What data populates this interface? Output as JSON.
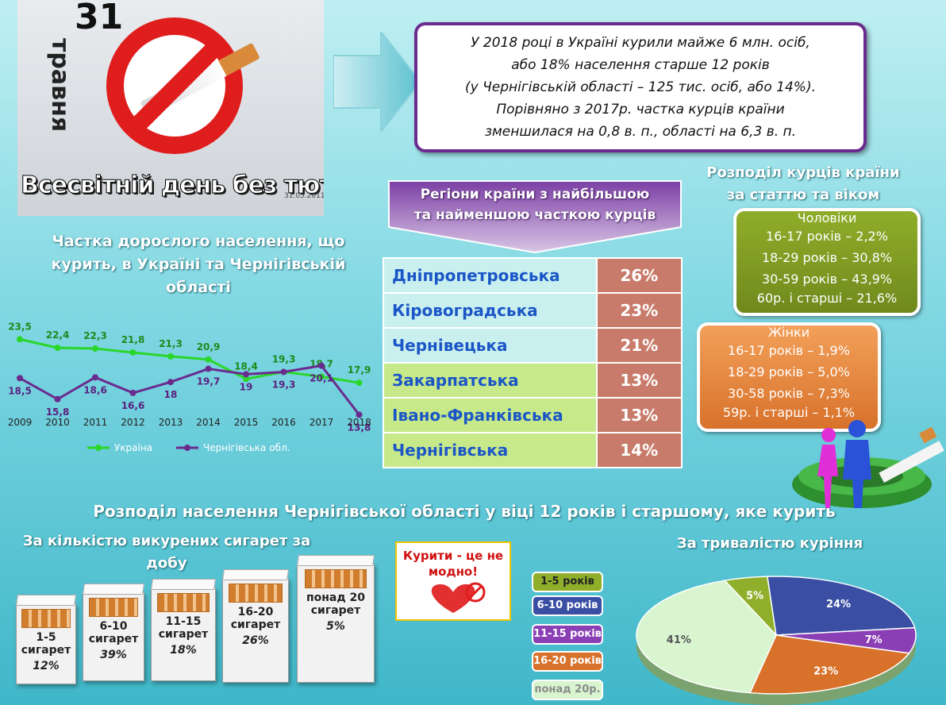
{
  "poster": {
    "day": "31",
    "month": "травня",
    "caption": "Всесвітній день без тютюну",
    "stamp": "31.05.2011"
  },
  "facts": {
    "line1": "У 2018 році в Україні курили майже 6 млн. осіб,",
    "line2": "або 18% населення старше 12 років",
    "line3": "(у Чернігівській області – 125 тис. осіб, або 14%).",
    "line4": "Порівняно з 2017р. частка курців країни",
    "line5": "зменшилася на 0,8 в. п., області на 6,3 в. п."
  },
  "lineTitle": {
    "l1": "Частка дорослого населення, що",
    "l2": "курить, в Україні та Чернігівській",
    "l3": "області"
  },
  "chart_data": {
    "type": "line",
    "categories": [
      "2009",
      "2010",
      "2011",
      "2012",
      "2013",
      "2014",
      "2015",
      "2016",
      "2017",
      "2018"
    ],
    "series": [
      {
        "name": "Україна",
        "color": "#2ad62a",
        "values": [
          23.5,
          22.4,
          22.3,
          21.8,
          21.3,
          20.9,
          18.4,
          19.3,
          18.7,
          17.9
        ],
        "labels": [
          "23,5",
          "22,4",
          "22,3",
          "21,8",
          "21,3",
          "20,9",
          "18,4",
          "19,3",
          "18,7",
          "17,9"
        ]
      },
      {
        "name": "Чернігівська обл.",
        "color": "#6a2b8f",
        "values": [
          18.5,
          15.8,
          18.6,
          16.6,
          18,
          19.7,
          19,
          19.3,
          20.1,
          13.8
        ],
        "labels": [
          "18,5",
          "15,8",
          "18,6",
          "16,6",
          "18",
          "19,7",
          "19",
          "19,3",
          "20,1",
          "13,8"
        ]
      }
    ],
    "legend": "bottom"
  },
  "regions": {
    "title1": "Регіони країни з найбільшою",
    "title2": "та найменшою часткою курців",
    "rows": [
      {
        "name": "Дніпропетровська",
        "value": "26%"
      },
      {
        "name": "Кіровоградська",
        "value": "23%"
      },
      {
        "name": "Чернівецька",
        "value": "21%"
      },
      {
        "name": "Закарпатська",
        "value": "13%"
      },
      {
        "name": "Івано-Франківська",
        "value": "13%"
      },
      {
        "name": "Чернігівська",
        "value": "14%"
      }
    ]
  },
  "gender": {
    "title1": "Розподіл курців країни",
    "title2": "за статтю та віком",
    "men": {
      "label": "Чоловіки",
      "rows": [
        "16-17 років – 2,2%",
        "18-29 років – 30,8%",
        "30-59 років – 43,9%",
        "60р. і старші – 21,6%"
      ]
    },
    "women": {
      "label": "Жінки",
      "rows": [
        "16-17 років – 1,9%",
        "18-29 років – 5,0%",
        "30-58 років – 7,3%",
        "59р. і старші – 1,1%"
      ]
    }
  },
  "bottomTitle": "Розподіл населення Чернігівської області у віці 12 років і старшому, яке курить",
  "cigTitle": {
    "l1": "За кількістю викурених сигарет за",
    "l2": "добу"
  },
  "packs": [
    {
      "l1": "1-5",
      "l2": "сигарет",
      "pct": "12%",
      "value": 12
    },
    {
      "l1": "6-10",
      "l2": "сигарет",
      "pct": "39%",
      "value": 39
    },
    {
      "l1": "11-15",
      "l2": "сигарет",
      "pct": "18%",
      "value": 18
    },
    {
      "l1": "16-20",
      "l2": "сигарет",
      "pct": "26%",
      "value": 26
    },
    {
      "l1": "понад 20",
      "l2": "сигарет",
      "pct": "5%",
      "value": 5
    }
  ],
  "notice": {
    "l1": "Курити - це не",
    "l2": "модно!"
  },
  "durationTitle": "За тривалістю куріння",
  "pie": {
    "type": "pie",
    "slices": [
      {
        "name": "1-5 років",
        "value": 5,
        "label": "5%",
        "color": "#8faf2b"
      },
      {
        "name": "6-10 років",
        "value": 24,
        "label": "24%",
        "color": "#3a4fa3"
      },
      {
        "name": "11-15 років",
        "value": 7,
        "label": "7%",
        "color": "#8b3fb5"
      },
      {
        "name": "16-20 років",
        "value": 23,
        "label": "23%",
        "color": "#d8722b"
      },
      {
        "name": "понад 20р.",
        "value": 41,
        "label": "41%",
        "color": "#d8f5d0"
      }
    ]
  }
}
